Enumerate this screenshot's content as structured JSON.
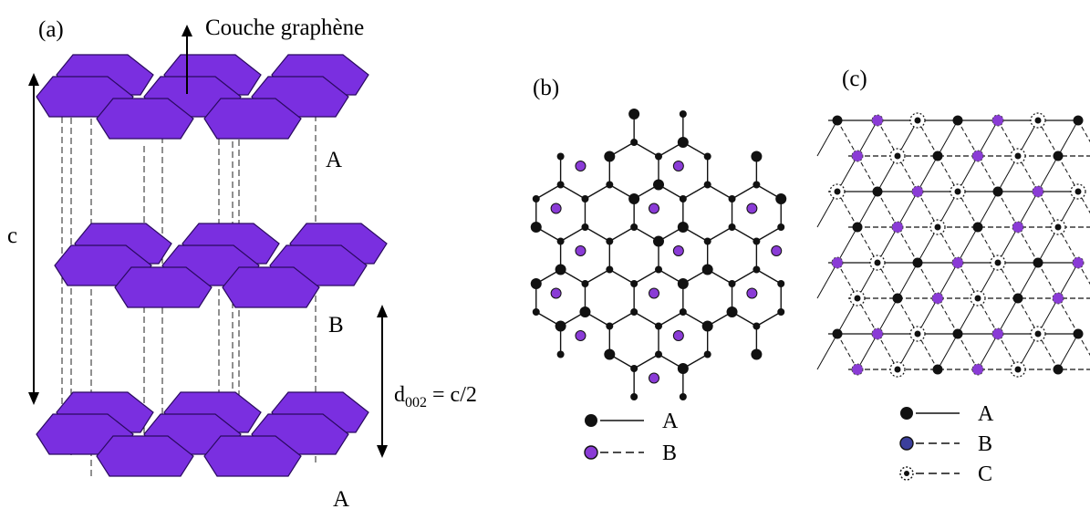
{
  "labels": {
    "panel_a": "(a)",
    "panel_b": "(b)",
    "panel_c": "(c)",
    "layer_name": "Couche graphène",
    "c_axis": "c",
    "d_spacing_base": "d",
    "d_spacing_sub": "002",
    "d_spacing_rest": " = c/2",
    "stack_top": "A",
    "stack_mid": "B",
    "stack_bottom": "A"
  },
  "legend_b": [
    {
      "marker": "black-dot",
      "line": "solid",
      "label": "A"
    },
    {
      "marker": "purple-dot",
      "line": "dashed",
      "label": "B"
    }
  ],
  "legend_c": [
    {
      "marker": "black-dot",
      "line": "solid",
      "label": "A"
    },
    {
      "marker": "blue-dot",
      "line": "dashed",
      "label": "B"
    },
    {
      "marker": "dotted-ring",
      "line": "dashed",
      "label": "C"
    }
  ],
  "colors": {
    "sheet_fill": "#7a2fe0",
    "sheet_edge": "#2a0a60",
    "atom_a": "#111111",
    "atom_b": "#8a3bd6",
    "atom_b_legend_c": "#3b3f9c"
  }
}
